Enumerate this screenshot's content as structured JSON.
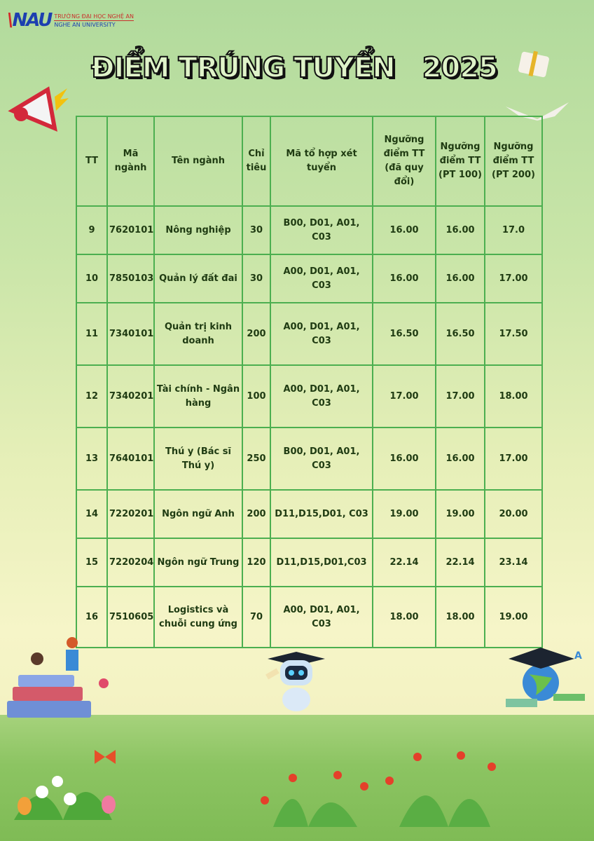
{
  "logo": {
    "mark": "NAU",
    "line1": "TRƯỜNG ĐẠI HỌC NGHỆ AN",
    "line2": "NGHE AN UNIVERSITY"
  },
  "title": "ĐIỂM TRÚNG TUYỂN   2025",
  "colors": {
    "border": "#4caf50",
    "text": "#1f3b12",
    "title_fill": "#dff3c9"
  },
  "table": {
    "headers": [
      "TT",
      "Mã ngành",
      "Tên ngành",
      "Chỉ tiêu",
      "Mã tổ hợp xét tuyển",
      "Ngưỡng điểm TT (đã quy đổi)",
      "Ngưỡng điểm TT (PT 100)",
      "Ngưỡng điểm TT (PT 200)"
    ],
    "rows": [
      [
        "9",
        "7620101",
        "Nông nghiệp",
        "30",
        "B00, D01, A01, C03",
        "16.00",
        "16.00",
        "17.0"
      ],
      [
        "10",
        "7850103",
        "Quản lý đất đai",
        "30",
        "A00, D01, A01, C03",
        "16.00",
        "16.00",
        "17.00"
      ],
      [
        "11",
        "7340101",
        "Quản trị kinh doanh",
        "200",
        "A00, D01, A01, C03",
        "16.50",
        "16.50",
        "17.50"
      ],
      [
        "12",
        "7340201",
        "Tài chính - Ngân hàng",
        "100",
        "A00, D01, A01, C03",
        "17.00",
        "17.00",
        "18.00"
      ],
      [
        "13",
        "7640101",
        "Thú y (Bác sĩ Thú y)",
        "250",
        "B00, D01, A01, C03",
        "16.00",
        "16.00",
        "17.00"
      ],
      [
        "14",
        "7220201",
        "Ngôn ngữ Anh",
        "200",
        "D11,D15,D01, C03",
        "19.00",
        "19.00",
        "20.00"
      ],
      [
        "15",
        "7220204",
        "Ngôn ngữ Trung",
        "120",
        "D11,D15,D01,C03",
        "22.14",
        "22.14",
        "23.14"
      ],
      [
        "16",
        "7510605",
        "Logistics và chuỗi cung ứng",
        "70",
        "A00, D01, A01, C03",
        "18.00",
        "18.00",
        "19.00"
      ]
    ]
  }
}
